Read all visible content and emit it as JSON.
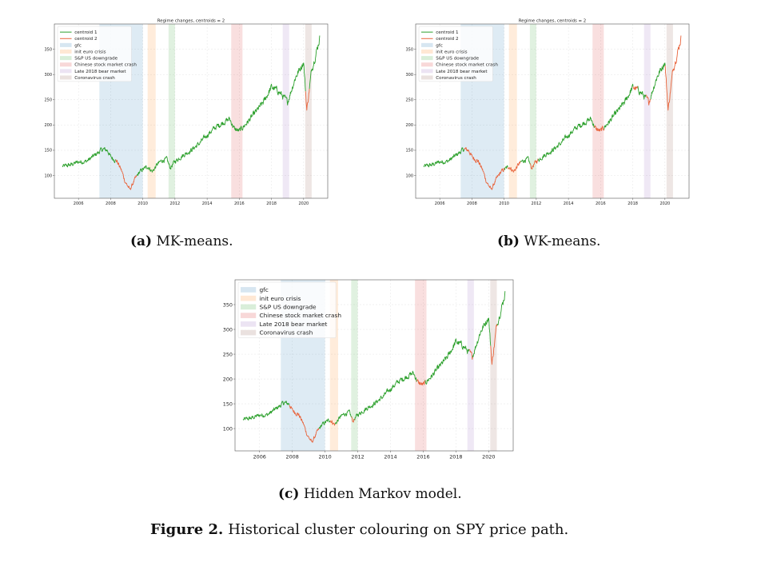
{
  "captions": {
    "a_label": "(a)",
    "a_text": "MK-means.",
    "b_label": "(b)",
    "b_text": "WK-means.",
    "c_label": "(c)",
    "c_text": "Hidden Markov model.",
    "figure_label": "Figure 2.",
    "figure_text": "Historical cluster colouring on SPY price path."
  },
  "chart_data": [
    {
      "type": "line",
      "title": "Regime changes, centroids = 2",
      "xlim": [
        2004.5,
        2021.5
      ],
      "ylim": [
        55,
        400
      ],
      "x_ticks": [
        2006,
        2008,
        2010,
        2012,
        2014,
        2016,
        2018,
        2020
      ],
      "y_ticks": [
        100,
        150,
        200,
        250,
        300,
        350
      ],
      "grid": true,
      "legend_position": "top-left",
      "series": [
        {
          "name": "centroid 1",
          "color": "#2ca02c"
        },
        {
          "name": "centroid 2",
          "color": "#e8643c"
        }
      ],
      "regimes": [
        {
          "name": "gfc",
          "start": 2007.3,
          "end": 2010.0,
          "color": "#1f77b4"
        },
        {
          "name": "init euro crisis",
          "start": 2010.3,
          "end": 2010.8,
          "color": "#ff7f0e"
        },
        {
          "name": "S&P US downgrade",
          "start": 2011.6,
          "end": 2012.0,
          "color": "#2ca02c"
        },
        {
          "name": "Chinese stock market crash",
          "start": 2015.5,
          "end": 2016.2,
          "color": "#d62728"
        },
        {
          "name": "Late 2018 bear market",
          "start": 2018.7,
          "end": 2019.1,
          "color": "#9467bd"
        },
        {
          "name": "Coronavirus crash",
          "start": 2020.1,
          "end": 2020.5,
          "color": "#8c564b"
        }
      ],
      "price_path": {
        "x": [
          2005.0,
          2005.5,
          2006.0,
          2006.5,
          2007.0,
          2007.5,
          2007.8,
          2008.0,
          2008.4,
          2008.7,
          2008.9,
          2009.2,
          2009.5,
          2009.8,
          2010.0,
          2010.3,
          2010.6,
          2010.9,
          2011.2,
          2011.5,
          2011.7,
          2012.0,
          2012.5,
          2013.0,
          2013.5,
          2014.0,
          2014.5,
          2015.0,
          2015.4,
          2015.7,
          2016.0,
          2016.5,
          2017.0,
          2017.5,
          2018.0,
          2018.4,
          2018.9,
          2019.0,
          2019.5,
          2020.0,
          2020.2,
          2020.5,
          2020.8,
          2021.0
        ],
        "y": [
          118,
          121,
          127,
          128,
          140,
          152,
          150,
          137,
          128,
          108,
          88,
          72,
          92,
          107,
          112,
          118,
          108,
          122,
          130,
          132,
          115,
          128,
          140,
          150,
          163,
          180,
          195,
          205,
          212,
          192,
          188,
          205,
          225,
          245,
          275,
          268,
          250,
          245,
          295,
          325,
          230,
          310,
          345,
          372
        ]
      },
      "centroid2_segments": {
        "a": [
          [
            2008.3,
            2009.6
          ],
          [
            2020.1,
            2020.35
          ]
        ],
        "b": [
          [
            2007.5,
            2010.0
          ],
          [
            2010.2,
            2011.0
          ],
          [
            2011.6,
            2012.1
          ],
          [
            2015.6,
            2016.2
          ],
          [
            2018.0,
            2018.3
          ],
          [
            2018.8,
            2019.1
          ],
          [
            2020.0,
            2021.0
          ]
        ],
        "c": [
          [
            2007.8,
            2009.6
          ],
          [
            2010.3,
            2010.6
          ],
          [
            2011.6,
            2011.8
          ],
          [
            2015.6,
            2016.1
          ],
          [
            2018.8,
            2019.0
          ],
          [
            2020.1,
            2020.5
          ]
        ]
      }
    }
  ]
}
